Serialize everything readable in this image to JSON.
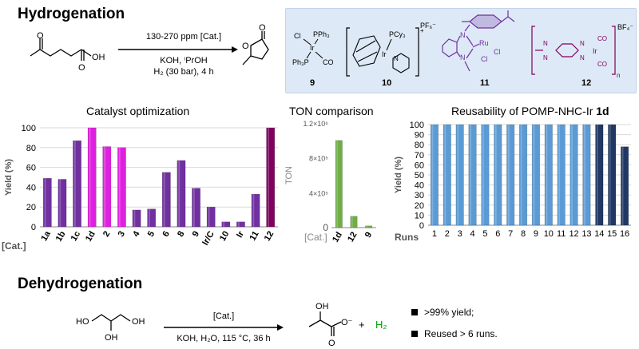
{
  "hydrogenation": {
    "title": "Hydrogenation",
    "conditions_top": "130-270 ppm [Cat.]",
    "conditions_mid": "KOH, ⁱPrOH",
    "conditions_bot": "H₂ (30 bar), 4 h",
    "catalyst_numbers": [
      "9",
      "10",
      "11",
      "12"
    ],
    "cat9_atoms": {
      "cl": "Cl",
      "pph3_top": "PPh₃",
      "ir": "Ir",
      "ph3p": "Ph₃P",
      "co": "CO"
    },
    "cat10_atoms": {
      "pcy3": "PCy₃",
      "ir": "Ir",
      "n": "N",
      "pf6": "PF₆⁻",
      "charge": "+"
    },
    "cat11_atoms": {
      "n": "N",
      "ru": "Ru",
      "cl1": "Cl",
      "cl2": "Cl"
    },
    "cat12_atoms": {
      "co1": "CO",
      "co2": "CO",
      "ir": "Ir",
      "bf4": "BF₄⁻",
      "n_sub": "n",
      "n1": "N",
      "n2": "N",
      "n3": "N",
      "n4": "N"
    }
  },
  "chart_data": [
    {
      "type": "bar",
      "title": "Catalyst optimization",
      "ylabel": "Yield (%)",
      "xlabel": "[Cat.]",
      "ylim": [
        0,
        100
      ],
      "yticks": [
        0,
        20,
        40,
        60,
        80,
        100
      ],
      "categories": [
        "1a",
        "1b",
        "1c",
        "1d",
        "2",
        "3",
        "4",
        "5",
        "6",
        "8",
        "9",
        "Ir/C",
        "10",
        "Ir",
        "11",
        "12"
      ],
      "values": [
        49,
        48,
        87,
        100,
        81,
        80,
        17,
        18,
        55,
        67,
        39,
        20,
        5,
        5,
        33,
        100
      ],
      "colors": [
        "#7030a0",
        "#7030a0",
        "#7030a0",
        "#e020e0",
        "#e020e0",
        "#e020e0",
        "#7030a0",
        "#7030a0",
        "#7030a0",
        "#7030a0",
        "#7030a0",
        "#7030a0",
        "#7030a0",
        "#7030a0",
        "#7030a0",
        "#800060"
      ],
      "grid": true
    },
    {
      "type": "bar",
      "title": "TON comparison",
      "ylabel": "TON",
      "xlabel": "[Cat.]",
      "ylim": [
        0,
        1200000
      ],
      "ytick_labels": [
        "0",
        "4×10⁵",
        "8×10⁵",
        "1.2×10⁶"
      ],
      "categories": [
        "1d",
        "12",
        "9"
      ],
      "values": [
        1000000,
        130000,
        20000
      ],
      "color": "#70ad47"
    },
    {
      "type": "bar",
      "title": "Reusability of POMP-NHC-Ir",
      "title_bold": "1d",
      "ylabel": "Yield (%)",
      "xlabel": "Runs",
      "ylim": [
        0,
        100
      ],
      "yticks": [
        0,
        10,
        20,
        30,
        40,
        50,
        60,
        70,
        80,
        90,
        100
      ],
      "categories": [
        "1",
        "2",
        "3",
        "4",
        "5",
        "6",
        "7",
        "8",
        "9",
        "10",
        "11",
        "12",
        "13",
        "14",
        "15",
        "16"
      ],
      "values": [
        100,
        100,
        100,
        100,
        100,
        100,
        100,
        100,
        100,
        100,
        100,
        100,
        100,
        100,
        100,
        78
      ],
      "colors": [
        "#5b9bd5",
        "#5b9bd5",
        "#5b9bd5",
        "#5b9bd5",
        "#5b9bd5",
        "#5b9bd5",
        "#5b9bd5",
        "#5b9bd5",
        "#5b9bd5",
        "#5b9bd5",
        "#5b9bd5",
        "#5b9bd5",
        "#5b9bd5",
        "#1f3864",
        "#1f3864",
        "#1f3864"
      ],
      "grid": true
    }
  ],
  "dehydrogenation": {
    "title": "Dehydrogenation",
    "conditions_top": "[Cat.]",
    "conditions_bot": "KOH, H₂O, 115 °C, 36 h",
    "plus": "+",
    "h2": "H₂",
    "bullets": [
      ">99% yield;",
      "Reused > 6 runs."
    ],
    "glycerol": {
      "oh_left": "HO",
      "oh_right": "OH",
      "oh_bottom": "OH"
    },
    "lactate": {
      "oh": "OH",
      "o_minus": "O⁻",
      "o": "O"
    }
  },
  "colors": {
    "panel_bg": "#dde9f6",
    "purple": "#7030a0",
    "magenta": "#e020e0",
    "green": "#70ad47",
    "blue": "#5b9bd5",
    "navy": "#1f3864",
    "h2_green": "#00a000"
  }
}
